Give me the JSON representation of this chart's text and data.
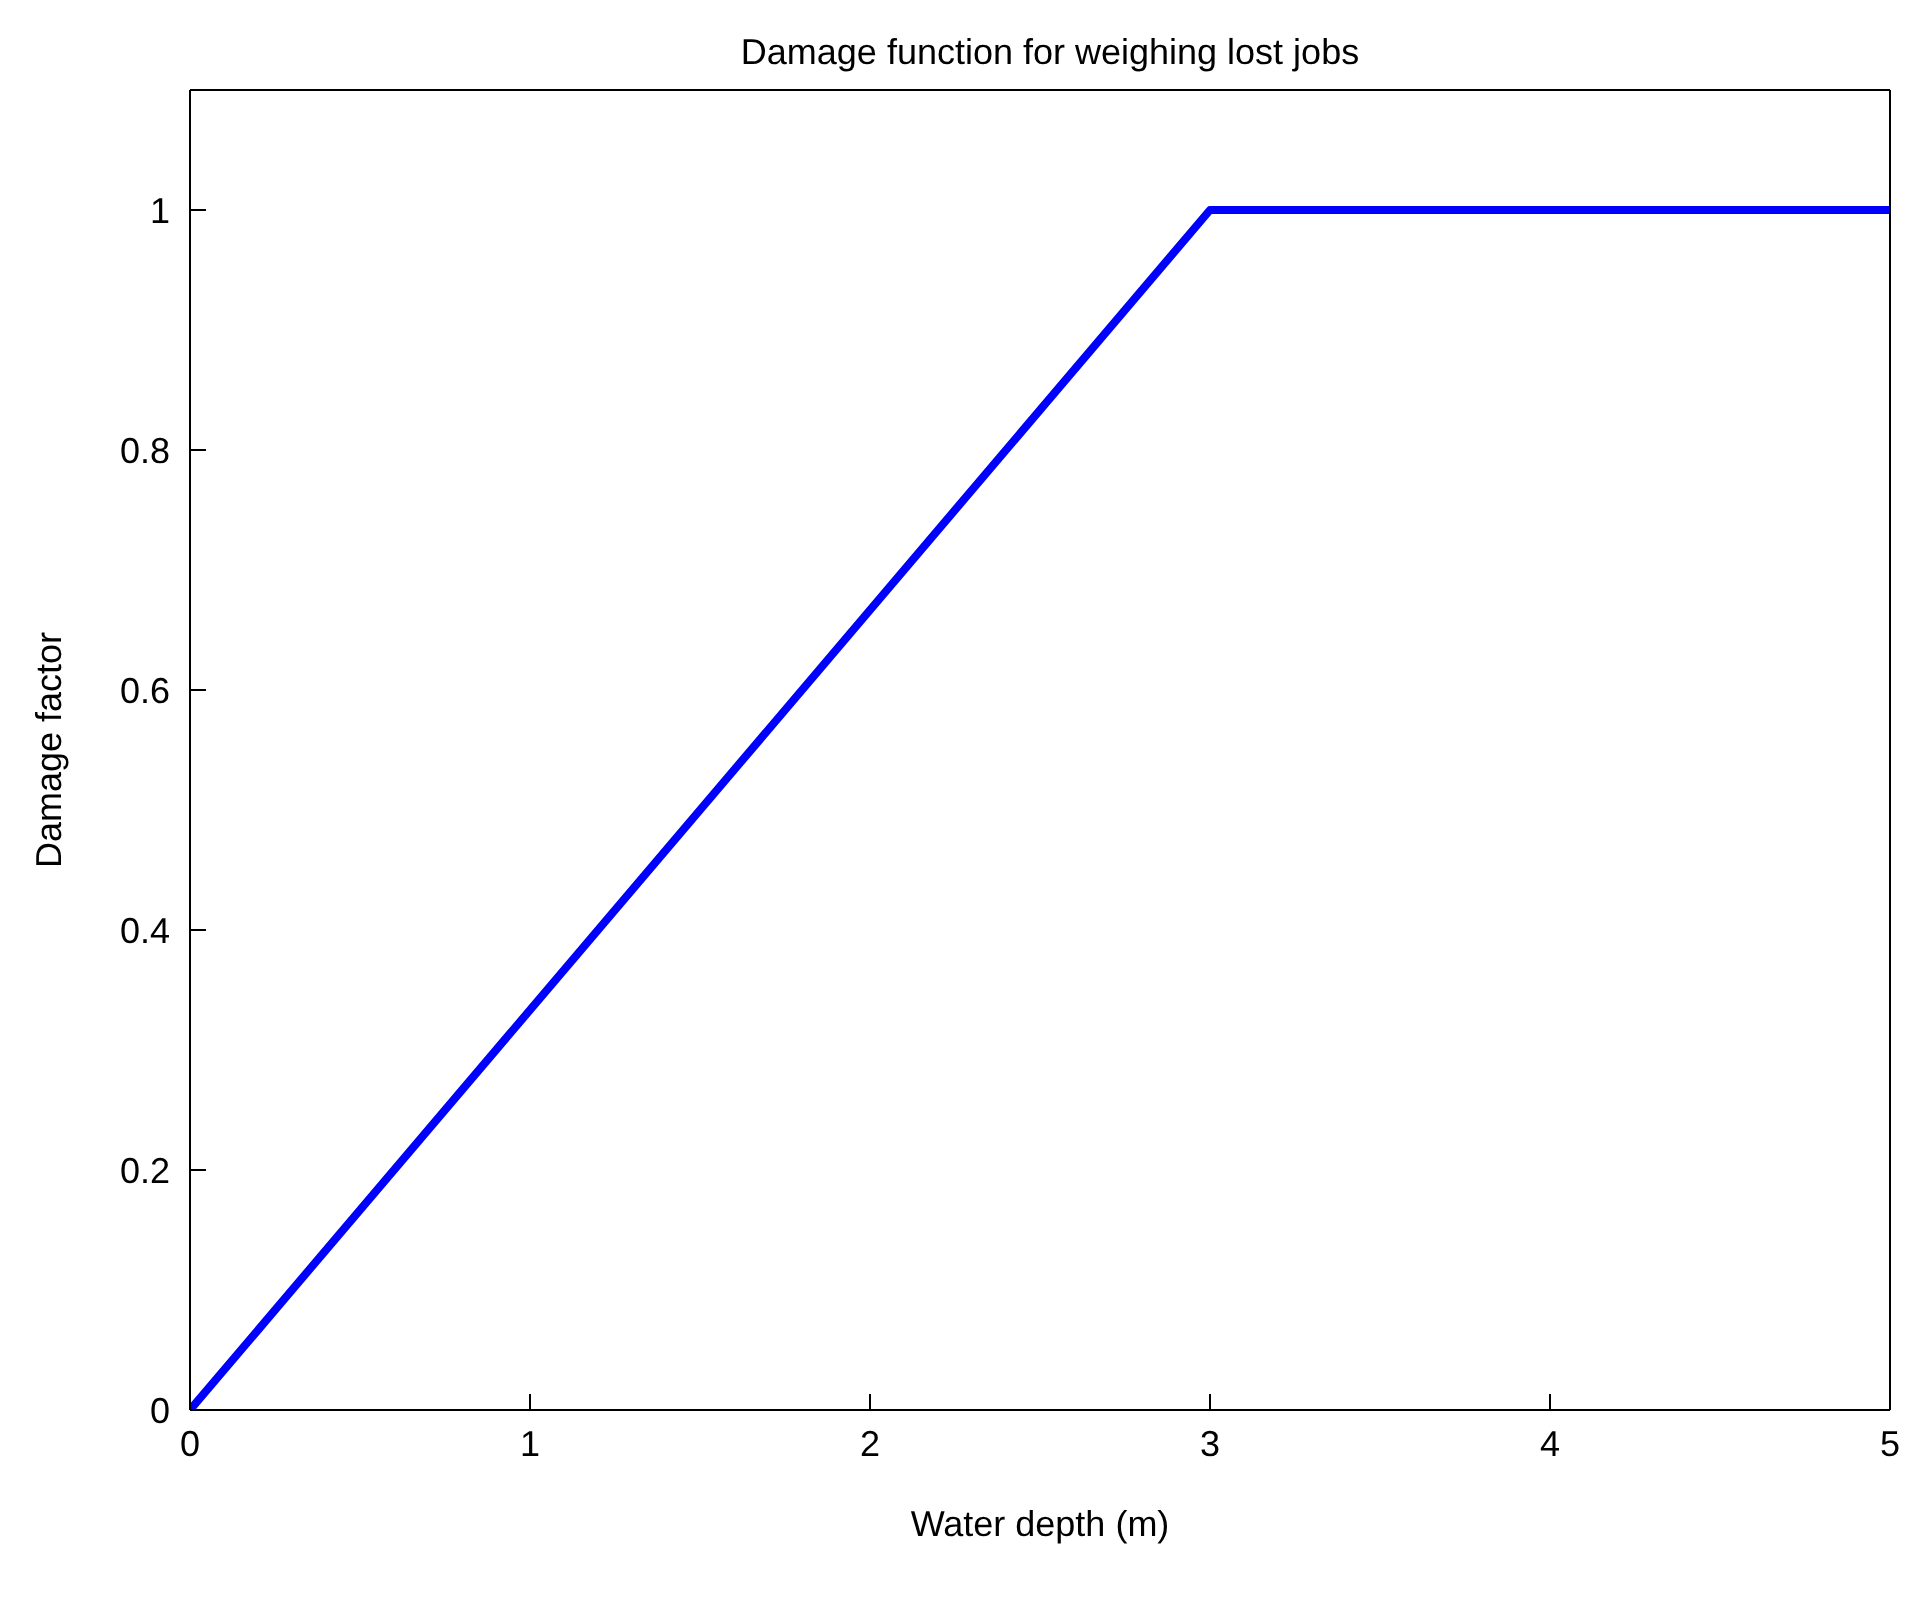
{
  "chart_data": {
    "type": "line",
    "title": "Damage function for weighing lost jobs",
    "xlabel": "Water depth (m)",
    "ylabel": "Damage factor",
    "x": [
      0,
      3,
      5
    ],
    "series": [
      {
        "color": "#0000ff",
        "values": [
          0,
          1,
          1
        ]
      }
    ],
    "xlim": [
      0,
      5
    ],
    "xticks": [
      0,
      1,
      2,
      3,
      4,
      5
    ],
    "ylim": [
      0,
      1.1
    ],
    "yticks": [
      0,
      0.2,
      0.4,
      0.6,
      0.8,
      1
    ],
    "grid": false,
    "legend": false,
    "marker": "none",
    "line_style": "solid"
  }
}
